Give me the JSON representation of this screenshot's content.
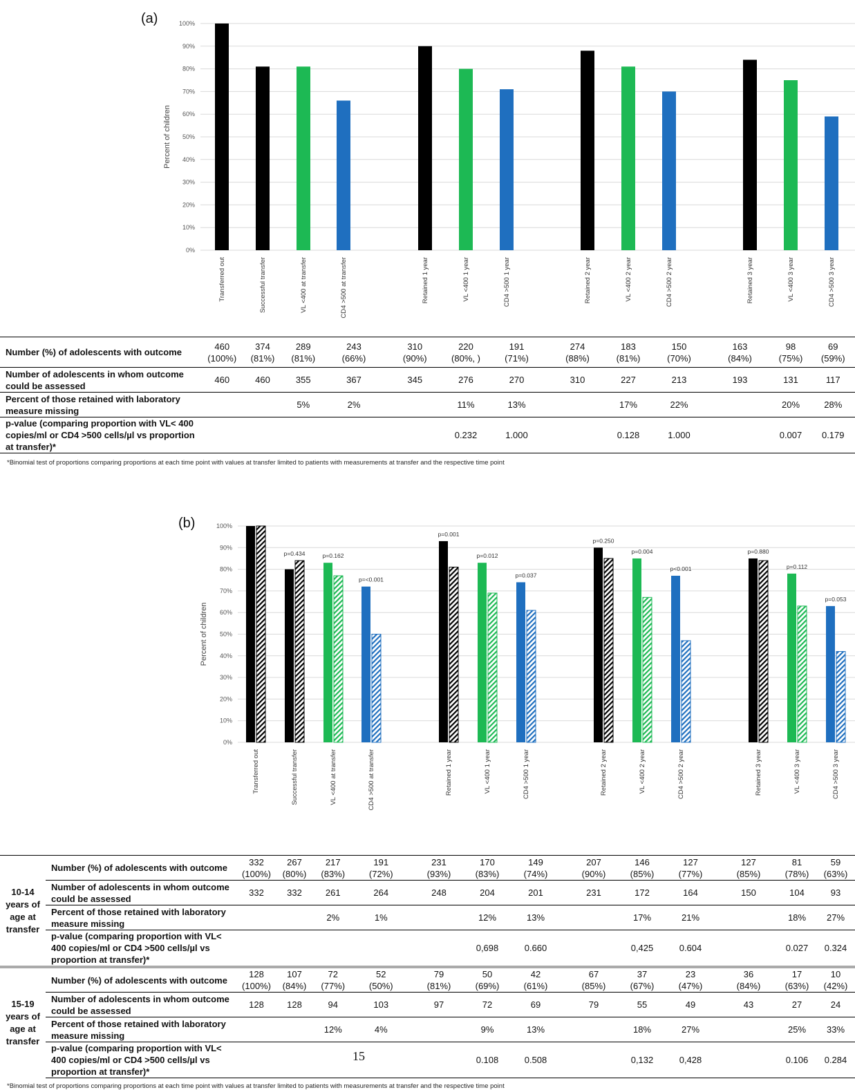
{
  "panels": [
    {
      "label": "(a)",
      "ylabel": "Percent of children",
      "yticks": [
        "0%",
        "10%",
        "20%",
        "30%",
        "40%",
        "50%",
        "60%",
        "70%",
        "80%",
        "90%",
        "100%"
      ],
      "categories": [
        "Transferred out",
        "Successful transfer",
        "VL <400 at transfer",
        "CD4 >500 at transfer",
        "Retained 1 year",
        "VL <400 1 year",
        "CD4 >500 1 year",
        "Retained 2 year",
        "VL <400  2 year",
        "CD4 >500 2 year",
        "Retained 3 year",
        "VL <400 3 year",
        "CD4 >500 3 year"
      ]
    },
    {
      "label": "(b)",
      "ylabel": "Percent of children",
      "yticks": [
        "0%",
        "10%",
        "20%",
        "30%",
        "40%",
        "50%",
        "60%",
        "70%",
        "80%",
        "90%",
        "100%"
      ],
      "categories": [
        "Transferred out",
        "Successful transfer",
        "VL <400 at transfer",
        "CD4 >500 at transfer",
        "Retained 1 year",
        "VL <400 1 year",
        "CD4 >500 1 year",
        "Retained 2 year",
        "VL <400  2 year",
        "CD4 >500 2 year",
        "Retained 3 year",
        "VL <400 3 year",
        "CD4 >500 3 year"
      ],
      "pvalues": [
        "",
        "p=0.434",
        "p=0.162",
        "p=<0.001",
        "p=0.001",
        "p=0.012",
        "p=0.037",
        "p=0.250",
        "p=0.004",
        "p<0.001",
        "p=0.880",
        "p=0.112",
        "p=0.053"
      ]
    }
  ],
  "colors": {
    "retention": "#000000",
    "vl": "#1db954",
    "cd4": "#1f6fbf"
  },
  "chart_data": [
    {
      "type": "bar",
      "categories": [
        "Transferred out",
        "Successful transfer",
        "VL <400 at transfer",
        "CD4 >500 at transfer",
        "Retained 1 year",
        "VL <400 1 year",
        "CD4 >500 1 year",
        "Retained 2 year",
        "VL <400  2 year",
        "CD4 >500 2 year",
        "Retained 3 year",
        "VL <400 3 year",
        "CD4 >500 3 year"
      ],
      "values": [
        100,
        81,
        81,
        66,
        90,
        80,
        71,
        88,
        81,
        70,
        84,
        75,
        59
      ],
      "ylabel": "Percent of children",
      "ylim": [
        0,
        100
      ],
      "grid": true
    },
    {
      "type": "bar",
      "categories": [
        "Transferred out",
        "Successful transfer",
        "VL <400 at transfer",
        "CD4 >500 at transfer",
        "Retained 1 year",
        "VL <400 1 year",
        "CD4 >500 1 year",
        "Retained 2 year",
        "VL <400  2 year",
        "CD4 >500 2 year",
        "Retained 3 year",
        "VL <400 3 year",
        "CD4 >500 3 year"
      ],
      "series": [
        {
          "values": [
            100,
            80,
            83,
            72,
            93,
            83,
            74,
            90,
            85,
            77,
            85,
            78,
            63
          ]
        },
        {
          "values": [
            100,
            84,
            77,
            50,
            81,
            69,
            61,
            85,
            67,
            47,
            84,
            63,
            42
          ]
        }
      ],
      "ylabel": "Percent of children",
      "ylim": [
        0,
        100
      ],
      "grid": true
    }
  ],
  "table_a": {
    "rows": [
      {
        "label": "Number (%) of adolescents with outcome",
        "cells": [
          "460\n(100%)",
          "374\n(81%)",
          "289\n(81%)",
          "243\n(66%)",
          "310\n(90%)",
          "220\n(80%, )",
          "191\n(71%)",
          "274\n(88%)",
          "183\n(81%)",
          "150\n(70%)",
          "163\n(84%)",
          "98\n(75%)",
          "69\n(59%)"
        ]
      },
      {
        "label": "Number of adolescents in whom outcome could be assessed",
        "cells": [
          "460",
          "460",
          "355",
          "367",
          "345",
          "276",
          "270",
          "310",
          "227",
          "213",
          "193",
          "131",
          "117"
        ]
      },
      {
        "label": "Percent of those retained with laboratory measure missing",
        "cells": [
          "",
          "",
          "5%",
          "2%",
          "",
          "11%",
          "13%",
          "",
          "17%",
          "22%",
          "",
          "20%",
          "28%"
        ]
      },
      {
        "label": "p-value (comparing proportion with VL< 400 copies/ml or CD4 >500 cells/µl vs proportion at transfer)*",
        "cells": [
          "",
          "",
          "",
          "",
          "",
          "0.232",
          "1.000",
          "",
          "0.128",
          "1.000",
          "",
          "0.007",
          "0.179"
        ]
      }
    ],
    "footnote": "*Binomial test of proportions comparing proportions at each time point with values at transfer limited to patients with measurements at transfer and the respective time point"
  },
  "table_b": {
    "groups": [
      {
        "label": "10-14 years of age at transfer",
        "rows": [
          {
            "label": "Number (%) of adolescents with outcome",
            "cells": [
              "332\n(100%)",
              "267\n(80%)",
              "217\n(83%)",
              "191\n(72%)",
              "231\n(93%)",
              "170\n(83%)",
              "149\n(74%)",
              "207\n(90%)",
              "146\n(85%)",
              "127\n(77%)",
              "127\n(85%)",
              "81\n(78%)",
              "59\n(63%)"
            ]
          },
          {
            "label": "Number of adolescents in whom outcome could be assessed",
            "cells": [
              "332",
              "332",
              "261",
              "264",
              "248",
              "204",
              "201",
              "231",
              "172",
              "164",
              "150",
              "104",
              "93"
            ]
          },
          {
            "label": "Percent of those retained with laboratory measure missing",
            "cells": [
              "",
              "",
              "2%",
              "1%",
              "",
              "12%",
              "13%",
              "",
              "17%",
              "21%",
              "",
              "18%",
              "27%"
            ]
          },
          {
            "label": "p-value (comparing proportion with VL< 400 copies/ml or CD4 >500 cells/µl vs proportion at transfer)*",
            "cells": [
              "",
              "",
              "",
              "",
              "",
              "0,698",
              "0.660",
              "",
              "0,425",
              "0.604",
              "",
              "0.027",
              "0.324"
            ]
          }
        ]
      },
      {
        "label": "15-19 years of age at transfer",
        "rows": [
          {
            "label": "Number (%) of adolescents with outcome",
            "cells": [
              "128\n(100%)",
              "107\n(84%)",
              "72\n(77%)",
              "52\n(50%)",
              "79\n(81%)",
              "50\n(69%)",
              "42\n(61%)",
              "67\n(85%)",
              "37\n(67%)",
              "23\n(47%)",
              "36\n(84%)",
              "17\n(63%)",
              "10\n(42%)"
            ]
          },
          {
            "label": "Number of adolescents in whom outcome could be assessed",
            "cells": [
              "128",
              "128",
              "94",
              "103",
              "97",
              "72",
              "69",
              "79",
              "55",
              "49",
              "43",
              "27",
              "24"
            ]
          },
          {
            "label": "Percent of those retained with laboratory measure missing",
            "cells": [
              "",
              "",
              "12%",
              "4%",
              "",
              "9%",
              "13%",
              "",
              "18%",
              "27%",
              "",
              "25%",
              "33%"
            ]
          },
          {
            "label": "p-value (comparing proportion with VL< 400 copies/ml or CD4 >500 cells/µl vs proportion at transfer)*",
            "cells": [
              "",
              "",
              "",
              "",
              "",
              "0.108",
              "0.508",
              "",
              "0,132",
              "0,428",
              "",
              "0.106",
              "0.284"
            ]
          }
        ]
      }
    ],
    "footnote": "*Binomial test of proportions comparing proportions at each time point with values at transfer limited to patients with measurements at transfer and the respective time point",
    "page_number": "15"
  }
}
